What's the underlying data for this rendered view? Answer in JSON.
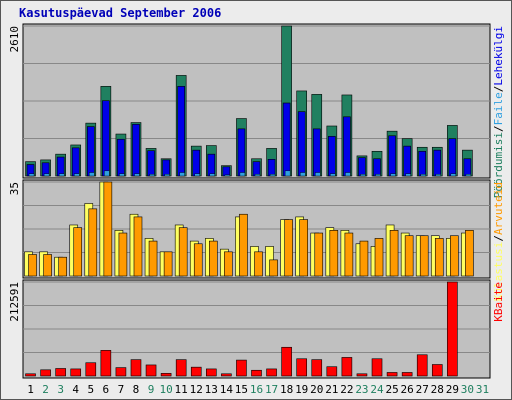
{
  "title": "Kasutuspäevad September 2006",
  "colors": {
    "pages_bar": "#0000e8",
    "hits_bar": "#208060",
    "files_bar": "#30a0e0",
    "visits_bar": "#ffff60",
    "visitors_bar": "#ff9a00",
    "kbytes_bar": "#ff0000",
    "plot_bg": "#c0c0c0",
    "weekday_label": "#000000",
    "weekend_label": "#208060"
  },
  "chart_data": [
    {
      "type": "bar",
      "title": "",
      "ylabel_max": "2610",
      "ylim": [
        0,
        2610
      ],
      "x": [
        1,
        2,
        3,
        4,
        5,
        6,
        7,
        8,
        9,
        10,
        11,
        12,
        13,
        14,
        15,
        16,
        17,
        18,
        19,
        20,
        21,
        22,
        23,
        24,
        25,
        26,
        27,
        28,
        29,
        30,
        31
      ],
      "legend": [
        "Pöördumisi",
        "Faile",
        "Lehekülgi"
      ],
      "legend_sep": "/",
      "series": [
        {
          "name": "Pöördumisi",
          "color_key": "hits_bar",
          "values": [
            250,
            280,
            380,
            540,
            920,
            1560,
            730,
            930,
            480,
            300,
            1750,
            520,
            530,
            180,
            1000,
            300,
            480,
            2610,
            1480,
            1420,
            870,
            1410,
            350,
            430,
            780,
            650,
            500,
            500,
            880,
            450,
            0
          ]
        },
        {
          "name": "Faile",
          "color_key": "files_bar",
          "values": [
            40,
            40,
            40,
            40,
            60,
            90,
            40,
            40,
            30,
            30,
            60,
            40,
            40,
            20,
            60,
            30,
            30,
            90,
            60,
            60,
            40,
            60,
            30,
            30,
            40,
            40,
            30,
            30,
            40,
            30,
            0
          ]
        },
        {
          "name": "Lehekülgi",
          "color_key": "pages_bar",
          "values": [
            200,
            230,
            330,
            490,
            860,
            1310,
            640,
            900,
            440,
            280,
            1560,
            450,
            380,
            160,
            820,
            250,
            290,
            1270,
            1120,
            820,
            690,
            1030,
            320,
            300,
            700,
            520,
            430,
            450,
            650,
            300,
            0
          ]
        }
      ]
    },
    {
      "type": "bar",
      "title": "",
      "ylabel_max": "35",
      "ylim": [
        0,
        35
      ],
      "x": [
        1,
        2,
        3,
        4,
        5,
        6,
        7,
        8,
        9,
        10,
        11,
        12,
        13,
        14,
        15,
        16,
        17,
        18,
        19,
        20,
        21,
        22,
        23,
        24,
        25,
        26,
        27,
        28,
        29,
        30,
        31
      ],
      "legend": [
        "Külastusi",
        "Arvuteid"
      ],
      "legend_sep": "/",
      "series": [
        {
          "name": "Külastusi",
          "color_key": "visits_bar",
          "values": [
            9,
            9,
            7,
            19,
            27,
            35,
            17,
            23,
            14,
            9,
            19,
            13,
            14,
            10,
            22,
            11,
            11,
            21,
            22,
            16,
            18,
            17,
            12,
            11,
            19,
            16,
            15,
            15,
            14,
            16,
            0
          ]
        },
        {
          "name": "Arvuteid",
          "color_key": "visitors_bar",
          "values": [
            8,
            8,
            7,
            18,
            25,
            35,
            16,
            22,
            13,
            9,
            18,
            12,
            13,
            9,
            23,
            9,
            6,
            21,
            21,
            16,
            17,
            16,
            13,
            14,
            17,
            15,
            15,
            14,
            15,
            17,
            0
          ]
        }
      ]
    },
    {
      "type": "bar",
      "title": "",
      "ylabel_max": "212591",
      "ylim": [
        0,
        212591
      ],
      "x": [
        1,
        2,
        3,
        4,
        5,
        6,
        7,
        8,
        9,
        10,
        11,
        12,
        13,
        14,
        15,
        16,
        17,
        18,
        19,
        20,
        21,
        22,
        23,
        24,
        25,
        26,
        27,
        28,
        29,
        30,
        31
      ],
      "legend": [
        "KBaite"
      ],
      "series": [
        {
          "name": "KBaite",
          "color_key": "kbytes_bar",
          "values": [
            5000,
            14000,
            17000,
            16000,
            30000,
            58000,
            19000,
            37000,
            25000,
            6000,
            37000,
            20000,
            16000,
            5000,
            36000,
            13000,
            16000,
            65000,
            39000,
            37000,
            21000,
            42000,
            5000,
            39000,
            8000,
            8000,
            48000,
            26000,
            212591,
            0,
            0
          ]
        }
      ]
    }
  ],
  "xaxis": {
    "labels": [
      "1",
      "2",
      "3",
      "4",
      "5",
      "6",
      "7",
      "8",
      "9",
      "10",
      "11",
      "12",
      "13",
      "14",
      "15",
      "16",
      "17",
      "18",
      "19",
      "20",
      "21",
      "22",
      "23",
      "24",
      "25",
      "26",
      "27",
      "28",
      "29",
      "30",
      "31"
    ],
    "weekend": [
      2,
      3,
      9,
      10,
      16,
      17,
      23,
      24,
      30,
      31
    ]
  }
}
